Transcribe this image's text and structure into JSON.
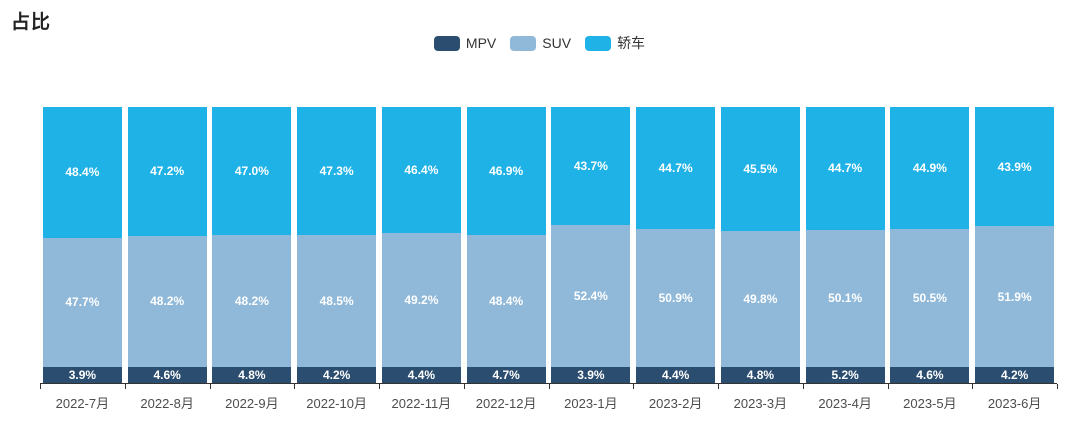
{
  "title": "占比",
  "chart_data": {
    "type": "bar",
    "stacked": true,
    "percentage": true,
    "title": "占比",
    "legend_position": "top-center",
    "grid": false,
    "ylim": [
      0,
      100
    ],
    "label_suffix": "%",
    "categories": [
      "2022-7月",
      "2022-8月",
      "2022-9月",
      "2022-10月",
      "2022-11月",
      "2022-12月",
      "2023-1月",
      "2023-2月",
      "2023-3月",
      "2023-4月",
      "2023-5月",
      "2023-6月"
    ],
    "series": [
      {
        "name": "MPV",
        "color": "#2A4D70",
        "stack_order": "bottom",
        "values": [
          3.9,
          4.6,
          4.8,
          4.2,
          4.4,
          4.7,
          3.9,
          4.4,
          4.8,
          5.2,
          4.6,
          4.2
        ]
      },
      {
        "name": "SUV",
        "color": "#8FB8D9",
        "stack_order": "middle",
        "values": [
          47.7,
          48.2,
          48.2,
          48.5,
          49.2,
          48.4,
          52.4,
          50.9,
          49.8,
          50.1,
          50.5,
          51.9
        ]
      },
      {
        "name": "轿车",
        "color": "#1EB2E6",
        "stack_order": "top",
        "values": [
          48.4,
          47.2,
          47.0,
          47.3,
          46.4,
          46.9,
          43.7,
          44.7,
          45.5,
          44.7,
          44.9,
          43.9
        ]
      }
    ]
  },
  "colors": {
    "background": "#ffffff",
    "title_text": "#222222",
    "legend_text": "#333333",
    "axis_line": "#333333",
    "axis_label_text": "#4d4d4d",
    "value_label_text": "#ffffff"
  }
}
